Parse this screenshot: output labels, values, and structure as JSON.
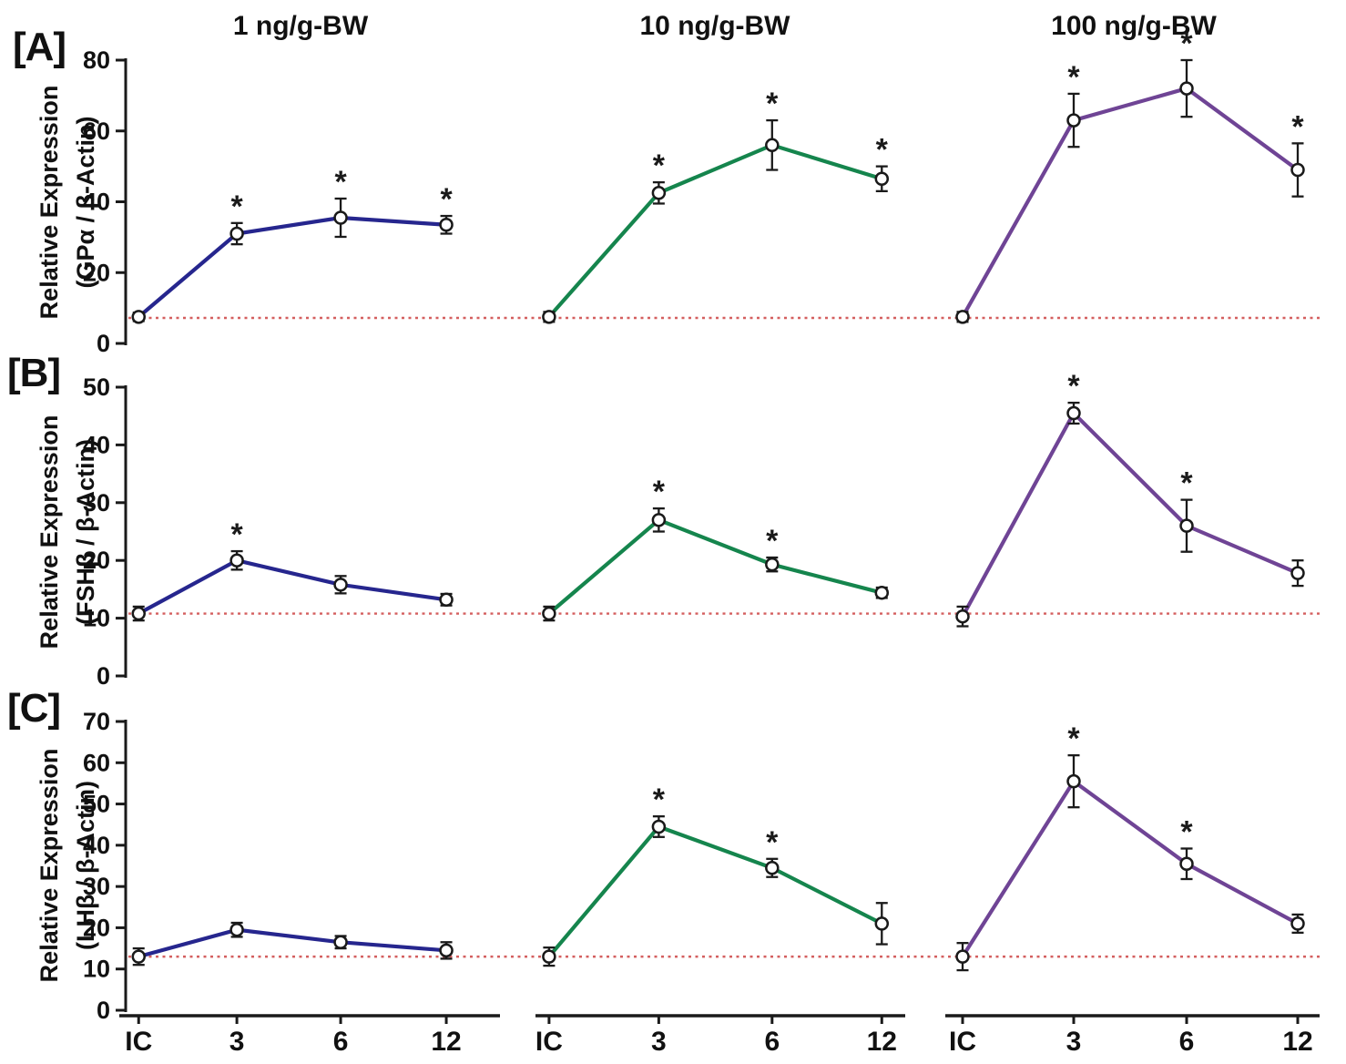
{
  "chart_data": {
    "type": "line",
    "x_categories": [
      "IC",
      "3",
      "6",
      "12"
    ],
    "column_titles": [
      "1 ng/g-BW",
      "10 ng/g-BW",
      "100 ng/g-BW"
    ],
    "column_colors": [
      "#26268e",
      "#15854d",
      "#6f4495"
    ],
    "baseline_color": "#d45f5f",
    "axis_color": "#1a1a1a",
    "marker": {
      "shape": "open-circle",
      "fill": "#ffffff",
      "stroke": "#1a1a1a"
    },
    "significance_symbol": "*",
    "legend_position": "none",
    "grid": false,
    "rows": [
      {
        "panel_tag": "[A]",
        "ylabel_line1": "Relative Expression",
        "ylabel_line2": "(GPα / β-Actin)",
        "ylim": [
          0,
          80
        ],
        "yticks": [
          0,
          20,
          40,
          60,
          80
        ],
        "baseline": 7.2,
        "cells": [
          {
            "dose": "1 ng/g-BW",
            "values": [
              7.5,
              31,
              35.5,
              33.5
            ],
            "errors": [
              1.2,
              3,
              5.4,
              2.5
            ],
            "significant": [
              false,
              true,
              true,
              true
            ]
          },
          {
            "dose": "10 ng/g-BW",
            "values": [
              7.5,
              42.5,
              56,
              46.5
            ],
            "errors": [
              1.4,
              3,
              7,
              3.5
            ],
            "significant": [
              false,
              true,
              true,
              true
            ]
          },
          {
            "dose": "100 ng/g-BW",
            "values": [
              7.5,
              63,
              72,
              49
            ],
            "errors": [
              1.4,
              7.5,
              8,
              7.5
            ],
            "significant": [
              false,
              true,
              true,
              true
            ]
          }
        ]
      },
      {
        "panel_tag": "[B]",
        "ylabel_line1": "Relative Expression",
        "ylabel_line2": "(FSHβ / β-Actin)",
        "ylim": [
          0,
          50
        ],
        "yticks": [
          0,
          10,
          20,
          30,
          40,
          50
        ],
        "baseline": 10.8,
        "cells": [
          {
            "dose": "1 ng/g-BW",
            "values": [
              10.8,
              20,
              15.8,
              13.2
            ],
            "errors": [
              1.2,
              1.6,
              1.5,
              1
            ],
            "significant": [
              false,
              true,
              false,
              false
            ]
          },
          {
            "dose": "10 ng/g-BW",
            "values": [
              10.8,
              27,
              19.3,
              14.4
            ],
            "errors": [
              1.2,
              2,
              1.2,
              0.9
            ],
            "significant": [
              false,
              true,
              true,
              false
            ]
          },
          {
            "dose": "100 ng/g-BW",
            "values": [
              10.3,
              45.5,
              26,
              17.8
            ],
            "errors": [
              1.7,
              1.8,
              4.5,
              2.2
            ],
            "significant": [
              false,
              true,
              true,
              false
            ]
          }
        ]
      },
      {
        "panel_tag": "[C]",
        "ylabel_line1": "Relative Expression",
        "ylabel_line2": "(LHβ / β-Actin)",
        "ylim": [
          0,
          70
        ],
        "yticks": [
          0,
          10,
          20,
          30,
          40,
          50,
          60,
          70
        ],
        "baseline": 13,
        "cells": [
          {
            "dose": "1 ng/g-BW",
            "values": [
              13,
              19.5,
              16.5,
              14.5
            ],
            "errors": [
              2,
              1.7,
              1.5,
              2
            ],
            "significant": [
              false,
              false,
              false,
              false
            ]
          },
          {
            "dose": "10 ng/g-BW",
            "values": [
              13,
              44.5,
              34.5,
              21
            ],
            "errors": [
              2.2,
              2.5,
              2.2,
              5
            ],
            "significant": [
              false,
              true,
              true,
              false
            ]
          },
          {
            "dose": "100 ng/g-BW",
            "values": [
              13,
              55.5,
              35.5,
              21
            ],
            "errors": [
              3.3,
              6.3,
              3.7,
              2.2
            ],
            "significant": [
              false,
              true,
              true,
              false
            ]
          }
        ]
      }
    ]
  }
}
